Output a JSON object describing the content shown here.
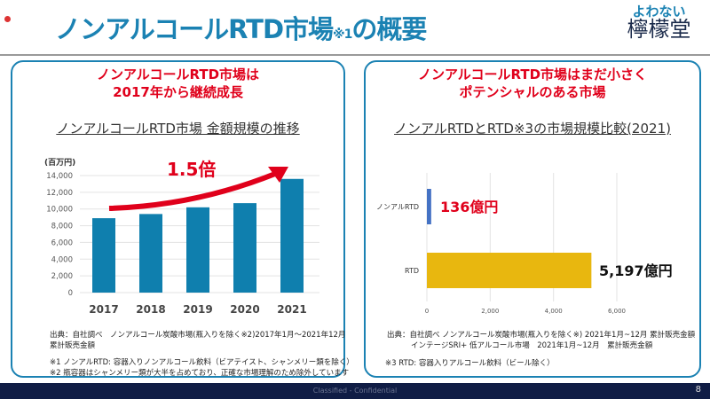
{
  "slide": {
    "title": "ノンアルコールRTD市場",
    "title_note": "※1",
    "title_suffix": "の概要",
    "page_number": "8",
    "footer": "Classified - Confidential"
  },
  "logo": {
    "line1": "よわない",
    "line2": "檸檬堂"
  },
  "left_panel": {
    "headline": [
      "ノンアルコールRTD市場は",
      "2017年から継続成長"
    ],
    "subtitle": "ノンアルコールRTD市場 金額規模の推移",
    "source": [
      "出典：自社調べ　ノンアルコール炭酸市場(瓶入りを除く※2)2017年1月～2021年12月",
      "累計販売金額"
    ],
    "notes": [
      "※1 ノンアルRTD: 容器入りノンアルコール飲料（ビアテイスト、シャンメリー類を除く）",
      "※2 瓶容器はシャンメリー類が大半を占めており、正確な市場理解のため除外しています"
    ]
  },
  "right_panel": {
    "headline": [
      "ノンアルコールRTD市場はまだ小さく",
      "ポテンシャルのある市場"
    ],
    "subtitle": "ノンアルRTDとRTD※3の市場規模比較(2021)",
    "source": [
      "出典：自社調べ ノンアルコール炭酸市場(瓶入りを除く※) 2021年1月~12月 累計販売金額",
      "インテージSRI+ 低アルコール市場　2021年1月~12月　累計販売金額"
    ],
    "notes": [
      "※3 RTD: 容器入りアルコール飲料（ビール除く）"
    ]
  },
  "chart_data": [
    {
      "type": "bar",
      "categories": [
        "2017",
        "2018",
        "2019",
        "2020",
        "2021"
      ],
      "values": [
        8900,
        9400,
        10200,
        10700,
        13600
      ],
      "ylabel": "(百万円)",
      "ylim": [
        0,
        14000
      ],
      "yticks": [
        "0",
        "2,000",
        "4,000",
        "6,000",
        "8,000",
        "10,000",
        "12,000",
        "14,000"
      ],
      "grid": true,
      "annotation": "1.5倍",
      "colors": {
        "bar": "#0f7fae",
        "annotation": "#e0001b"
      }
    },
    {
      "type": "bar",
      "orientation": "horizontal",
      "categories": [
        "ノンアルRTD",
        "RTD"
      ],
      "values": [
        136,
        5197
      ],
      "data_labels": [
        "136億円",
        "5,197億円"
      ],
      "xlim": [
        0,
        6000
      ],
      "xticks": [
        "0",
        "2,000",
        "4,000",
        "6,000"
      ],
      "grid": true,
      "colors": {
        "ノンアルRTD": "#4472c4",
        "RTD": "#e8b70f",
        "label_ノンアルRTD": "#e0001b",
        "label_RTD": "#111111"
      }
    }
  ]
}
